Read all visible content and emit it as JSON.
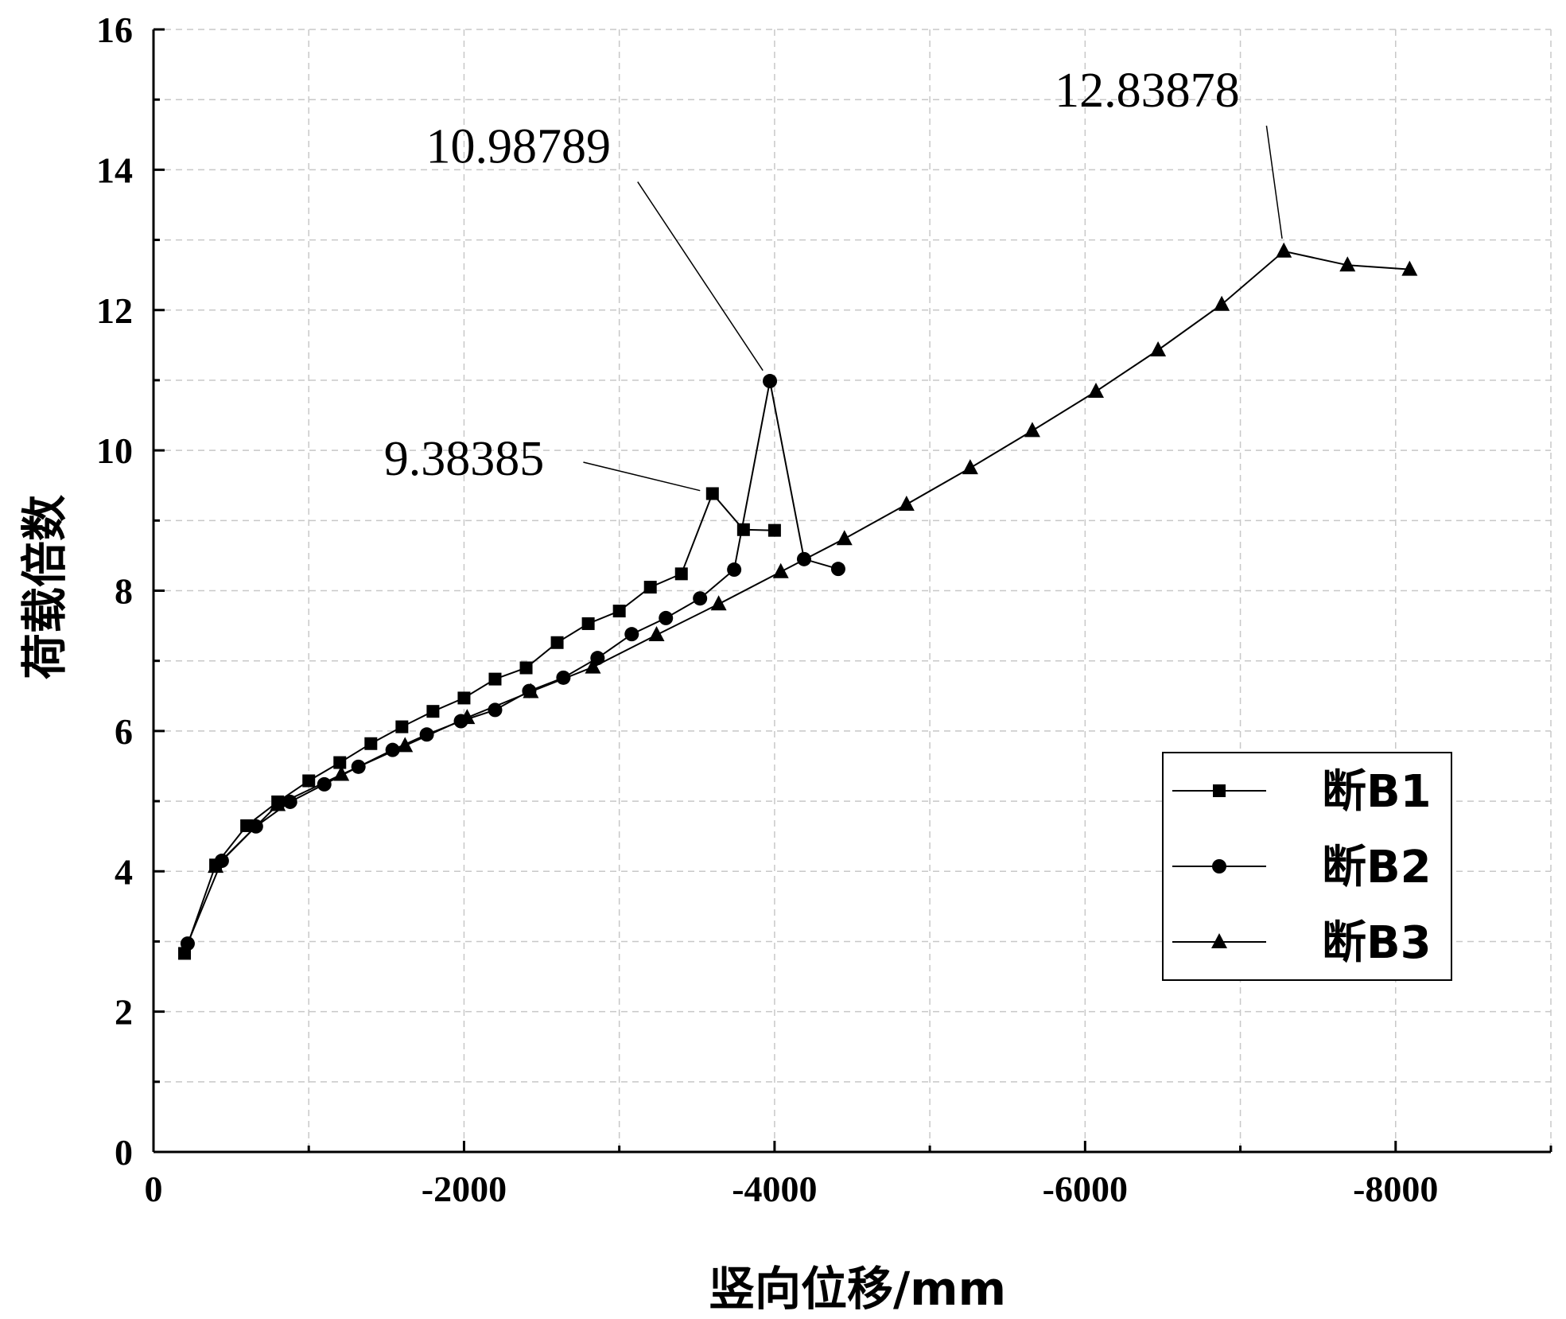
{
  "chart_data": {
    "type": "line",
    "xlabel": "竖向位移/mm",
    "ylabel": "荷载倍数",
    "xlim": [
      0,
      -9000
    ],
    "ylim": [
      0,
      16
    ],
    "x_ticks": [
      0,
      -2000,
      -4000,
      -6000,
      -8000
    ],
    "x_tick_labels": [
      "0",
      "-2000",
      "-4000",
      "-6000",
      "-8000"
    ],
    "y_ticks": [
      0,
      2,
      4,
      6,
      8,
      10,
      12,
      14,
      16
    ],
    "y_tick_labels": [
      "0",
      "2",
      "4",
      "6",
      "8",
      "10",
      "12",
      "14",
      "16"
    ],
    "grid": true,
    "legend_position": "bottom-right",
    "series": [
      {
        "name": "断B1",
        "marker": "square",
        "x": [
          -200,
          -400,
          -600,
          -800,
          -1000,
          -1200,
          -1400,
          -1600,
          -1800,
          -2000,
          -2200,
          -2400,
          -2600,
          -2800,
          -3000,
          -3200,
          -3400,
          -3600,
          -3800,
          -4000
        ],
        "y": [
          2.83,
          4.09,
          4.65,
          4.99,
          5.29,
          5.55,
          5.82,
          6.06,
          6.28,
          6.47,
          6.74,
          6.9,
          7.26,
          7.53,
          7.71,
          8.05,
          8.24,
          9.38385,
          8.87,
          8.86
        ]
      },
      {
        "name": "断B2",
        "marker": "circle",
        "x": [
          -220,
          -440,
          -660,
          -880,
          -1100,
          -1320,
          -1540,
          -1760,
          -1980,
          -2200,
          -2420,
          -2640,
          -2860,
          -3080,
          -3300,
          -3520,
          -3740,
          -3970,
          -4190,
          -4410
        ],
        "y": [
          2.97,
          4.15,
          4.64,
          4.99,
          5.24,
          5.49,
          5.73,
          5.95,
          6.14,
          6.3,
          6.57,
          6.76,
          7.04,
          7.38,
          7.61,
          7.89,
          8.3,
          10.98789,
          8.45,
          8.31
        ]
      },
      {
        "name": "断B3",
        "marker": "triangle",
        "x": [
          -400,
          -800,
          -1210,
          -1620,
          -2020,
          -2430,
          -2830,
          -3240,
          -3640,
          -4040,
          -4450,
          -4850,
          -5260,
          -5660,
          -6070,
          -6470,
          -6880,
          -7280,
          -7690,
          -8090
        ],
        "y": [
          4.07,
          4.95,
          5.38,
          5.79,
          6.19,
          6.56,
          6.91,
          7.37,
          7.81,
          8.27,
          8.74,
          9.23,
          9.75,
          10.28,
          10.84,
          11.43,
          12.08,
          12.83878,
          12.64,
          12.58
        ]
      }
    ],
    "annotations": [
      {
        "text": "9.38385",
        "x": -3600,
        "y": 9.38385,
        "text_x": -2000,
        "text_y": 9.65
      },
      {
        "text": "10.98789",
        "x": -3970,
        "y": 10.98789,
        "text_x": -2350,
        "text_y": 14.1
      },
      {
        "text": "12.83878",
        "x": -7280,
        "y": 12.83878,
        "text_x": -6400,
        "text_y": 14.9
      }
    ]
  }
}
